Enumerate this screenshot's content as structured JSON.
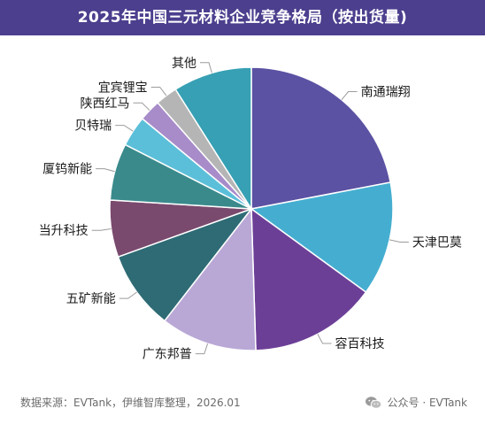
{
  "header": {
    "title": "2025年中国三元材料企业竞争格局（按出货量)"
  },
  "chart_data": {
    "type": "pie",
    "title": "2025年中国三元材料企业竞争格局（按出货量)",
    "slices": [
      {
        "label": "南通瑞翔",
        "value": 22.0,
        "color": "#5b52a3"
      },
      {
        "label": "天津巴莫",
        "value": 13.0,
        "color": "#45aed0"
      },
      {
        "label": "容百科技",
        "value": 14.5,
        "color": "#6c3f97"
      },
      {
        "label": "广东邦普",
        "value": 11.0,
        "color": "#b9a8d6"
      },
      {
        "label": "五矿新能",
        "value": 9.0,
        "color": "#2e6b75"
      },
      {
        "label": "当升科技",
        "value": 6.5,
        "color": "#7a4a6e"
      },
      {
        "label": "厦钨新能",
        "value": 6.5,
        "color": "#3a8a8c"
      },
      {
        "label": "贝特瑞",
        "value": 3.5,
        "color": "#5cbfd9"
      },
      {
        "label": "陕西红马",
        "value": 2.5,
        "color": "#a78cc9"
      },
      {
        "label": "宜宾锂宝",
        "value": 2.5,
        "color": "#b5b5b5"
      },
      {
        "label": "其他",
        "value": 9.0,
        "color": "#37a0b4"
      }
    ]
  },
  "footer": {
    "source": "数据来源：EVTank，伊维智库整理，2026.01",
    "brand": "公众号 · EVTank"
  }
}
